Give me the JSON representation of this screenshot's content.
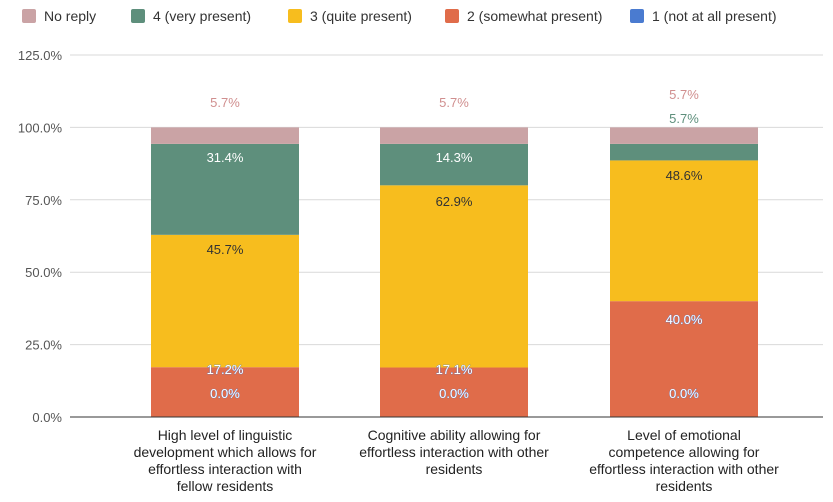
{
  "chart_data": {
    "type": "bar",
    "stacked": true,
    "ylim": [
      0,
      125
    ],
    "yticks": [
      "0.0%",
      "25.0%",
      "50.0%",
      "75.0%",
      "100.0%",
      "125.0%"
    ],
    "ytick_values": [
      0,
      25,
      50,
      75,
      100,
      125
    ],
    "grid": true,
    "legend_position": "top",
    "categories": [
      [
        "High level of linguistic",
        "development which allows for",
        "effortless interaction with",
        "fellow residents"
      ],
      [
        "Cognitive ability allowing for",
        "effortless interaction with other",
        "residents"
      ],
      [
        "Level of emotional",
        "competence allowing for",
        "effortless interaction with other",
        "residents"
      ]
    ],
    "series": [
      {
        "name": "1 (not at all present)",
        "color": "#4a7bd0",
        "values": [
          0.0,
          0.0,
          0.0
        ],
        "labels": [
          "0.0%",
          "0.0%",
          "0.0%"
        ],
        "label_color": "#ffffff"
      },
      {
        "name": "2 (somewhat present)",
        "color": "#e06c4a",
        "values": [
          17.2,
          17.1,
          40.0
        ],
        "labels": [
          "17.2%",
          "17.1%",
          "40.0%"
        ],
        "label_color": "#ffffff"
      },
      {
        "name": "3 (quite present)",
        "color": "#f7bd1e",
        "values": [
          45.7,
          62.9,
          48.6
        ],
        "labels": [
          "45.7%",
          "62.9%",
          "48.6%"
        ],
        "label_color": "#333333"
      },
      {
        "name": "4 (very present)",
        "color": "#5e8f7c",
        "values": [
          31.4,
          14.3,
          5.7
        ],
        "labels": [
          "31.4%",
          "14.3%",
          "5.7%"
        ],
        "label_color": "#ffffff"
      },
      {
        "name": "No reply",
        "color": "#caa3a5",
        "values": [
          5.7,
          5.7,
          5.7
        ],
        "labels": [
          "5.7%",
          "5.7%",
          "5.7%"
        ],
        "label_color": "#d08f8f"
      }
    ],
    "legend_order": [
      "No reply",
      "4 (very present)",
      "3 (quite present)",
      "2 (somewhat present)",
      "1 (not at all present)"
    ]
  }
}
